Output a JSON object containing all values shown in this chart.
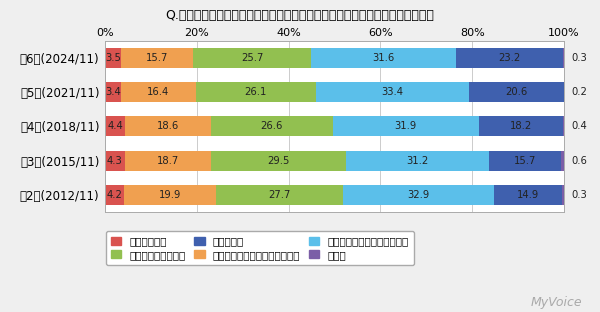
{
  "title": "Q.余暇の過ごし方を次のようなタイプに分けると、どのタイプに近いですか？",
  "categories": [
    "第6回(2024/11)",
    "第5回(2021/11)",
    "第4回(2018/11)",
    "第3回(2015/11)",
    "第2回(2012/11)"
  ],
  "series": [
    {
      "name": "アクティブ派",
      "color": "#d9534f",
      "values": [
        3.5,
        3.4,
        4.4,
        4.3,
        4.2
      ]
    },
    {
      "name": "どちらかといえばアクティブ派",
      "color": "#f0a050",
      "values": [
        15.7,
        16.4,
        18.6,
        18.7,
        19.9
      ]
    },
    {
      "name": "どちらともいえない",
      "color": "#92c050",
      "values": [
        25.7,
        26.1,
        26.6,
        29.5,
        27.7
      ]
    },
    {
      "name": "どちらかといえばゆったり派",
      "color": "#5bbfea",
      "values": [
        31.6,
        33.4,
        31.9,
        31.2,
        32.9
      ]
    },
    {
      "name": "ゆったり派",
      "color": "#3f60ae",
      "values": [
        23.2,
        20.6,
        18.2,
        15.7,
        14.9
      ]
    },
    {
      "name": "無回答",
      "color": "#7b5ea7",
      "values": [
        0.3,
        0.2,
        0.4,
        0.6,
        0.3
      ]
    }
  ],
  "outside_labels": [
    0.3,
    0.2,
    0.4,
    0.6,
    0.3
  ],
  "bg_color": "#efefef",
  "plot_bg_color": "#ffffff",
  "xticks": [
    0,
    20,
    40,
    60,
    80,
    100
  ],
  "xtick_labels": [
    "0%",
    "20%",
    "40%",
    "60%",
    "80%",
    "100%"
  ],
  "watermark": "MyVoice",
  "legend_ncol": 3,
  "bar_label_fontsize": 7.2,
  "outside_label_fontsize": 7.2,
  "label_color": "#222222"
}
